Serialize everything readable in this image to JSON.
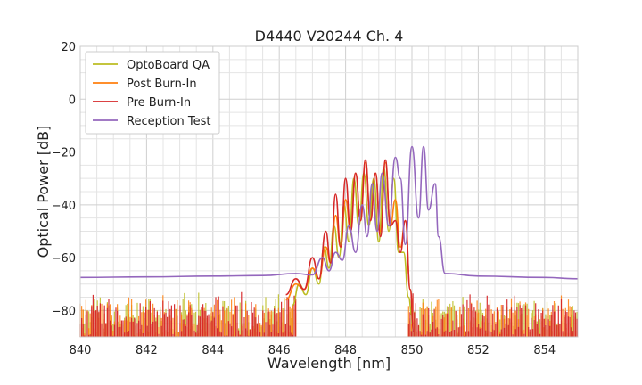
{
  "chart_data": {
    "type": "line",
    "title": "D4440 V20244 Ch. 4",
    "xlabel": "Wavelength [nm]",
    "ylabel": "Optical Power [dB]",
    "xlim": [
      840,
      855
    ],
    "ylim": [
      -90,
      20
    ],
    "x_ticks": [
      840,
      842,
      844,
      846,
      848,
      850,
      852,
      854
    ],
    "y_ticks": [
      20,
      0,
      -20,
      -40,
      -60,
      -80
    ],
    "x_tick_labels": [
      "840",
      "842",
      "844",
      "846",
      "848",
      "850",
      "852",
      "854"
    ],
    "y_tick_labels": [
      "20",
      "0",
      "−20",
      "−40",
      "−60",
      "−80"
    ],
    "grid": true,
    "minor_grid": true,
    "legend_position": "top-left",
    "series": [
      {
        "name": "OptoBoard QA",
        "color": "#bcbd22",
        "x": [
          846.4,
          846.6,
          846.8,
          847.0,
          847.2,
          847.35,
          847.5,
          847.65,
          847.8,
          847.95,
          848.1,
          848.25,
          848.4,
          848.55,
          848.7,
          848.85,
          849.0,
          849.15,
          849.3,
          849.45,
          849.6,
          849.75,
          849.9,
          850.0
        ],
        "values": [
          -78,
          -70,
          -74,
          -64,
          -70,
          -56,
          -64,
          -48,
          -60,
          -40,
          -54,
          -30,
          -48,
          -28,
          -48,
          -30,
          -54,
          -26,
          -50,
          -30,
          -58,
          -58,
          -75,
          -82
        ]
      },
      {
        "name": "Post Burn-In",
        "color": "#ff7f0e",
        "x": [
          846.2,
          846.5,
          846.75,
          847.0,
          847.2,
          847.4,
          847.55,
          847.7,
          847.85,
          848.0,
          848.15,
          848.3,
          848.45,
          848.6,
          848.75,
          848.9,
          849.05,
          849.2,
          849.35,
          849.5,
          849.65,
          849.8,
          849.95,
          850.05
        ],
        "values": [
          -76,
          -70,
          -72,
          -64,
          -68,
          -56,
          -62,
          -44,
          -56,
          -38,
          -50,
          -28,
          -46,
          -24,
          -46,
          -28,
          -50,
          -24,
          -48,
          -38,
          -56,
          -46,
          -72,
          -85
        ]
      },
      {
        "name": "Pre Burn-In",
        "color": "#d62728",
        "x": [
          846.2,
          846.5,
          846.75,
          847.0,
          847.2,
          847.4,
          847.55,
          847.7,
          847.85,
          848.0,
          848.15,
          848.3,
          848.45,
          848.6,
          848.75,
          848.9,
          849.05,
          849.2,
          849.35,
          849.5,
          849.65,
          849.8,
          849.95,
          850.05
        ],
        "values": [
          -74,
          -68,
          -72,
          -60,
          -68,
          -50,
          -62,
          -36,
          -56,
          -30,
          -50,
          -28,
          -46,
          -23,
          -46,
          -28,
          -52,
          -23,
          -48,
          -46,
          -58,
          -46,
          -72,
          -88
        ]
      },
      {
        "name": "Reception Test",
        "color": "#9467bd",
        "x": [
          840.0,
          842.0,
          844.0,
          845.5,
          846.5,
          847.0,
          847.3,
          847.5,
          847.7,
          847.9,
          848.1,
          848.3,
          848.5,
          848.65,
          848.8,
          848.95,
          849.1,
          849.3,
          849.5,
          849.65,
          849.8,
          850.0,
          850.2,
          850.35,
          850.5,
          850.7,
          850.8,
          851.0,
          852.0,
          854.0,
          855.0
        ],
        "values": [
          -67.5,
          -67.3,
          -67.0,
          -66.8,
          -66.0,
          -66.5,
          -60,
          -65,
          -58,
          -61,
          -48,
          -58,
          -40,
          -52,
          -32,
          -50,
          -28,
          -48,
          -22,
          -30,
          -55,
          -18,
          -45,
          -18,
          -42,
          -32,
          -52,
          -66,
          -67,
          -67.5,
          -68
        ]
      }
    ],
    "noise_floor": {
      "colors": [
        "#bcbd22",
        "#ff7f0e",
        "#d62728"
      ],
      "x_ranges": [
        [
          840.0,
          846.5
        ],
        [
          849.9,
          855.0
        ]
      ],
      "level_range": [
        -90,
        -73
      ]
    }
  }
}
